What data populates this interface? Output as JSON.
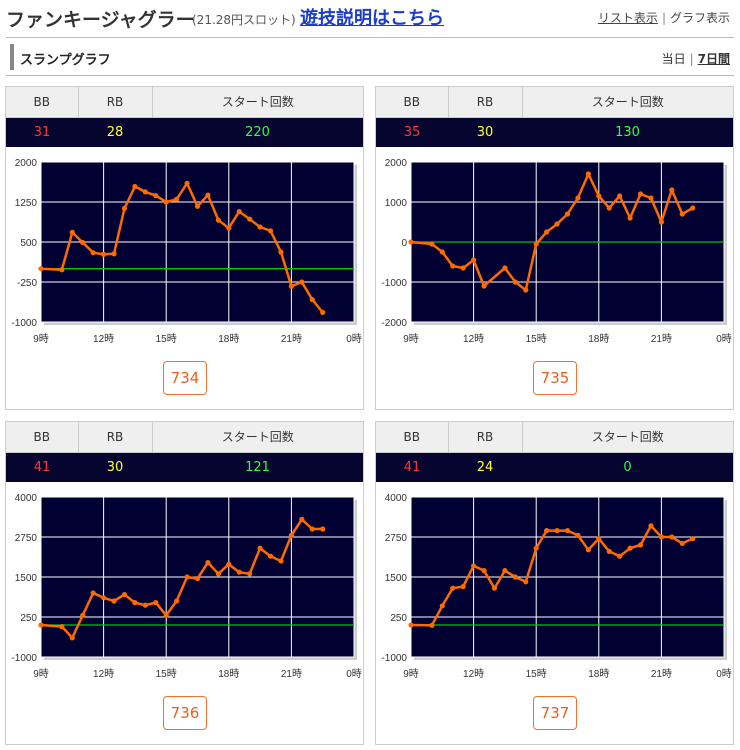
{
  "header": {
    "title": "ファンキージャグラー",
    "subtitle": "(21.28円スロット)",
    "rules_link": "遊技説明はこちら",
    "view_list": "リスト表示",
    "view_graph": "グラフ表示",
    "separator": "|"
  },
  "section": {
    "title": "スランプグラフ",
    "period_today": "当日",
    "period_week": "7日間",
    "separator": "|"
  },
  "columns": {
    "bb": "BB",
    "rb": "RB",
    "start": "スタート回数"
  },
  "colors": {
    "plot_bg": "#000033",
    "line": "#ff6a00",
    "zero_line": "#00c800",
    "grid": "#ffffff",
    "bb": "#ff3333",
    "rb": "#ffff33",
    "start": "#33ff33",
    "button": "#e86020"
  },
  "machines": [
    {
      "unit": "734",
      "bb": "31",
      "rb": "28",
      "start": "220",
      "chart_data": {
        "type": "line",
        "x_tick_labels": [
          "9時",
          "12時",
          "15時",
          "18時",
          "21時",
          "0時"
        ],
        "xlim": [
          9,
          24
        ],
        "ylim": [
          -1000,
          2000
        ],
        "y_tick_values": [
          -1000,
          -250,
          500,
          1250,
          2000
        ],
        "y_tick_labels": [
          "-1000",
          "-250",
          "500",
          "1250",
          "2000"
        ],
        "zero_line": 0,
        "x": [
          9.0,
          10.0,
          10.5,
          11.0,
          11.5,
          12.0,
          12.5,
          13.0,
          13.5,
          14.0,
          14.5,
          15.0,
          15.5,
          16.0,
          16.5,
          17.0,
          17.5,
          18.0,
          18.5,
          19.0,
          19.5,
          20.0,
          20.5,
          21.0,
          21.5,
          22.0,
          22.5
        ],
        "y": [
          0,
          -20,
          680,
          490,
          300,
          270,
          280,
          1130,
          1540,
          1440,
          1370,
          1250,
          1300,
          1600,
          1170,
          1380,
          910,
          760,
          1070,
          930,
          780,
          710,
          310,
          -330,
          -250,
          -580,
          -820
        ]
      }
    },
    {
      "unit": "735",
      "bb": "35",
      "rb": "30",
      "start": "130",
      "chart_data": {
        "type": "line",
        "x_tick_labels": [
          "9時",
          "12時",
          "15時",
          "18時",
          "21時",
          "0時"
        ],
        "xlim": [
          9,
          24
        ],
        "ylim": [
          -2000,
          2000
        ],
        "y_tick_values": [
          -2000,
          -1000,
          0,
          1000,
          2000
        ],
        "y_tick_labels": [
          "-2000",
          "-1000",
          "0",
          "1000",
          "2000"
        ],
        "zero_line": 0,
        "x": [
          9.0,
          10.0,
          10.5,
          11.0,
          11.5,
          12.0,
          12.5,
          13.5,
          14.0,
          14.5,
          15.0,
          15.5,
          16.0,
          16.5,
          17.0,
          17.5,
          18.0,
          18.5,
          19.0,
          19.5,
          20.0,
          20.5,
          21.0,
          21.5,
          22.0,
          22.5
        ],
        "y": [
          0,
          -50,
          -250,
          -600,
          -650,
          -450,
          -1100,
          -650,
          -1000,
          -1200,
          -50,
          250,
          450,
          700,
          1100,
          1700,
          1150,
          850,
          1150,
          600,
          1200,
          1100,
          500,
          1300,
          700,
          850
        ]
      }
    },
    {
      "unit": "736",
      "bb": "41",
      "rb": "30",
      "start": "121",
      "chart_data": {
        "type": "line",
        "x_tick_labels": [
          "9時",
          "12時",
          "15時",
          "18時",
          "21時",
          "0時"
        ],
        "xlim": [
          9,
          24
        ],
        "ylim": [
          -1000,
          4000
        ],
        "y_tick_values": [
          -1000,
          250,
          1500,
          2750,
          4000
        ],
        "y_tick_labels": [
          "-1000",
          "250",
          "1500",
          "2750",
          "4000"
        ],
        "zero_line": 0,
        "x": [
          9.0,
          10.0,
          10.5,
          11.0,
          11.5,
          12.0,
          12.5,
          13.0,
          13.5,
          14.0,
          14.5,
          15.0,
          15.5,
          16.0,
          16.5,
          17.0,
          17.5,
          18.0,
          18.5,
          19.0,
          19.5,
          20.0,
          20.5,
          21.0,
          21.5,
          22.0,
          22.5
        ],
        "y": [
          0,
          -50,
          -400,
          300,
          1000,
          850,
          750,
          950,
          700,
          620,
          700,
          300,
          750,
          1500,
          1450,
          1950,
          1600,
          1900,
          1650,
          1600,
          2400,
          2150,
          2000,
          2800,
          3300,
          3000,
          3000
        ]
      }
    },
    {
      "unit": "737",
      "bb": "41",
      "rb": "24",
      "start": "0",
      "chart_data": {
        "type": "line",
        "x_tick_labels": [
          "9時",
          "12時",
          "15時",
          "18時",
          "21時",
          "0時"
        ],
        "xlim": [
          9,
          24
        ],
        "ylim": [
          -1000,
          4000
        ],
        "y_tick_values": [
          -1000,
          250,
          1500,
          2750,
          4000
        ],
        "y_tick_labels": [
          "-1000",
          "250",
          "1500",
          "2750",
          "4000"
        ],
        "zero_line": 0,
        "x": [
          9.0,
          10.0,
          10.5,
          11.0,
          11.5,
          12.0,
          12.5,
          13.0,
          13.5,
          14.0,
          14.5,
          15.0,
          15.5,
          16.0,
          16.5,
          17.0,
          17.5,
          18.0,
          18.5,
          19.0,
          19.5,
          20.0,
          20.5,
          21.0,
          21.5,
          22.0,
          22.5
        ],
        "y": [
          0,
          -10,
          600,
          1150,
          1200,
          1850,
          1700,
          1150,
          1700,
          1500,
          1350,
          2400,
          2950,
          2950,
          2950,
          2800,
          2350,
          2700,
          2300,
          2150,
          2400,
          2500,
          3100,
          2750,
          2750,
          2550,
          2700
        ]
      }
    }
  ]
}
